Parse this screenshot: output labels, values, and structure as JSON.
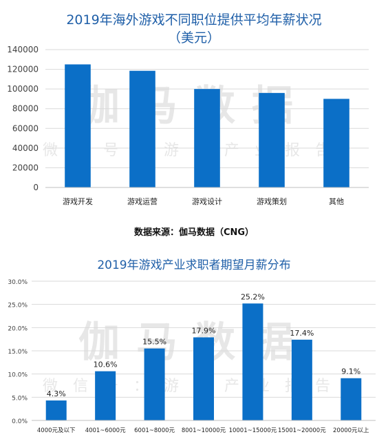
{
  "source_text": "数据来源：伽马数据（CNG）",
  "watermark": {
    "main": "伽马数据",
    "sub": "微信号：游戏产业报告"
  },
  "colors": {
    "bar": "#0b6fc7",
    "title": "#1f5fa8",
    "grid": "#d9d9d9",
    "axis_text": "#404040"
  },
  "chart_data": [
    {
      "type": "bar",
      "title": "2019年海外游戏不同职位提供平均年薪状况",
      "subtitle": "（美元）",
      "xlabel": "",
      "ylabel": "",
      "categories": [
        "游戏开发",
        "游戏运营",
        "游戏设计",
        "游戏策划",
        "其他"
      ],
      "values": [
        125000,
        118500,
        100000,
        96000,
        90000
      ],
      "ylim": [
        0,
        140000
      ],
      "yticks": [
        0,
        20000,
        40000,
        60000,
        80000,
        100000,
        120000,
        140000
      ],
      "ytick_labels": [
        "0",
        "20000",
        "40000",
        "60000",
        "80000",
        "100000",
        "120000",
        "140000"
      ],
      "grid": true,
      "legend": "none"
    },
    {
      "type": "bar",
      "title": "2019年游戏产业求职者期望月薪分布",
      "xlabel": "",
      "ylabel": "",
      "categories": [
        "4000元及以下",
        "4001~6000元",
        "6001~8000元",
        "8001~10000元",
        "10001~15000元",
        "15001~20000元",
        "20000元以上"
      ],
      "values": [
        4.3,
        10.6,
        15.5,
        17.9,
        25.2,
        17.4,
        9.1
      ],
      "data_labels": [
        "4.3%",
        "10.6%",
        "15.5%",
        "17.9%",
        "25.2%",
        "17.4%",
        "9.1%"
      ],
      "ylim": [
        0,
        30
      ],
      "yticks": [
        0,
        5,
        10,
        15,
        20,
        25,
        30
      ],
      "ytick_labels": [
        "0.0%",
        "5.0%",
        "10.0%",
        "15.0%",
        "20.0%",
        "25.0%",
        "30.0%"
      ],
      "grid": true,
      "legend": "none"
    }
  ]
}
